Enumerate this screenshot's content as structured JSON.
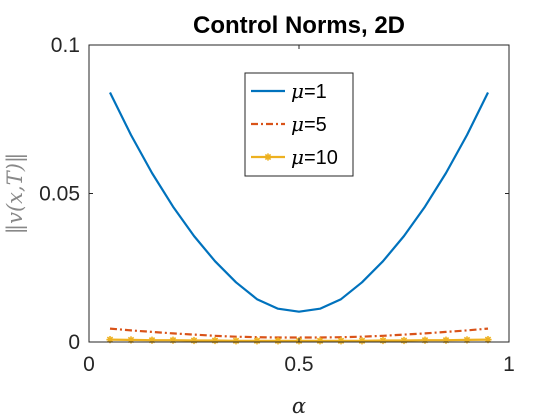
{
  "chart_data": {
    "type": "line",
    "title": "Control Norms, 2D",
    "xlabel": "α",
    "ylabel": "‖v(x,T)‖",
    "xlim": [
      0,
      1
    ],
    "ylim": [
      0,
      0.1
    ],
    "xticks": [
      "0",
      "0.5",
      "1"
    ],
    "yticks": [
      "0",
      "0.05",
      "0.1"
    ],
    "grid": false,
    "legend_position": "top-center",
    "x": [
      0.05,
      0.1,
      0.15,
      0.2,
      0.25,
      0.3,
      0.35,
      0.4,
      0.45,
      0.5,
      0.55,
      0.6,
      0.65,
      0.7,
      0.75,
      0.8,
      0.85,
      0.9,
      0.95
    ],
    "series": [
      {
        "name_symbol": "μ",
        "name_value": "=1",
        "color": "#0072BD",
        "style": "solid",
        "marker": "none",
        "values": [
          0.084,
          0.0697,
          0.0569,
          0.0456,
          0.0357,
          0.0272,
          0.0201,
          0.0144,
          0.0112,
          0.0102,
          0.0112,
          0.0144,
          0.0201,
          0.0272,
          0.0357,
          0.0456,
          0.0569,
          0.0697,
          0.084
        ]
      },
      {
        "name_symbol": "μ",
        "name_value": "=5",
        "color": "#D95319",
        "style": "dashdot",
        "marker": "none",
        "values": [
          0.0045,
          0.0039,
          0.0034,
          0.0029,
          0.0025,
          0.0021,
          0.0018,
          0.0016,
          0.0015,
          0.0015,
          0.0015,
          0.0016,
          0.0018,
          0.0021,
          0.0025,
          0.0029,
          0.0034,
          0.0039,
          0.0045
        ]
      },
      {
        "name_symbol": "μ",
        "name_value": "=10",
        "color": "#EDB120",
        "style": "solid",
        "marker": "asterisk",
        "values": [
          0.0008,
          0.0007,
          0.0006,
          0.0006,
          0.0005,
          0.0005,
          0.0004,
          0.0004,
          0.0004,
          0.0004,
          0.0004,
          0.0004,
          0.0004,
          0.0005,
          0.0005,
          0.0006,
          0.0006,
          0.0007,
          0.0008
        ]
      }
    ]
  }
}
